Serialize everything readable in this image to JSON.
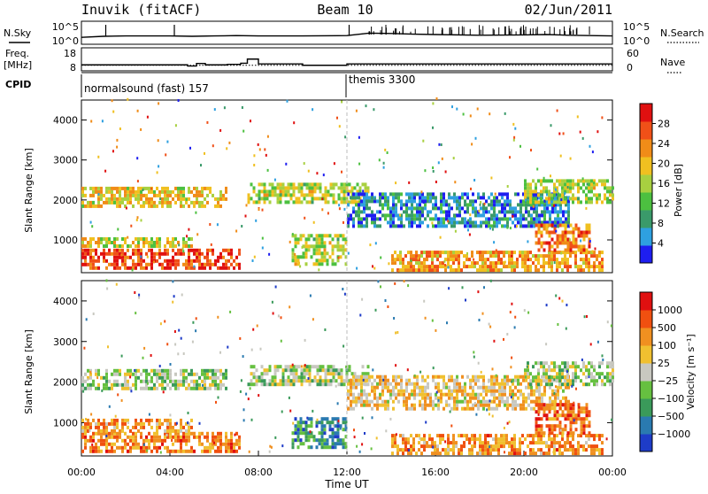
{
  "header": {
    "station": "Inuvik (fitACF)",
    "beam": "Beam 10",
    "date": "02/Jun/2011"
  },
  "left_labels": {
    "nsky": "N.Sky",
    "freq_line1": "Freq.",
    "freq_line2": "[MHz]",
    "cpid": "CPID"
  },
  "right_labels": {
    "nsearch": "N.Search",
    "nave": "Nave"
  },
  "cpid": {
    "mode1": "normalsound (fast) 157",
    "mode2": "themis 3300"
  },
  "colors": {
    "power_scale": [
      "#1e1ef0",
      "#2ea0e0",
      "#3a9a6a",
      "#4cc040",
      "#a8d040",
      "#f0c020",
      "#f08c18",
      "#f05018",
      "#e01010"
    ],
    "velocity_scale": [
      "#1e3cc8",
      "#2a7ab0",
      "#3a9a5a",
      "#66c040",
      "#c8c8c0",
      "#f0c030",
      "#f09020",
      "#f05010",
      "#e01010"
    ]
  },
  "chart_data": [
    {
      "type": "line",
      "panel": "noise",
      "x": [
        0,
        1,
        2,
        4,
        5,
        6,
        7,
        8,
        10,
        12,
        13,
        14,
        15,
        16,
        18,
        20,
        21,
        22,
        23,
        24
      ],
      "series": [
        {
          "name": "N.Sky",
          "values": [
            1.2,
            1.5,
            1.6,
            1.6,
            1.5,
            1.6,
            1.7,
            1.6,
            1.6,
            1.7,
            2.4,
            2.3,
            2.1,
            2.0,
            1.8,
            1.9,
            2.0,
            1.8,
            1.7,
            1.6
          ]
        }
      ],
      "yticks_left": [
        "10^5",
        "10^0"
      ],
      "yticks_right": [
        "10^5",
        "10^0"
      ]
    },
    {
      "type": "line",
      "panel": "frequency",
      "x": [
        0,
        4,
        4.8,
        5.2,
        5.6,
        6.6,
        7.2,
        7.5,
        8,
        10,
        12,
        24
      ],
      "series": [
        {
          "name": "Freq.",
          "values": [
            10.6,
            10.6,
            10.1,
            11.2,
            10.6,
            10.8,
            11.3,
            13.1,
            11.0,
            10.4,
            11.0,
            11.0
          ]
        }
      ],
      "yticks_left": [
        "18",
        "8"
      ],
      "yticks_right": [
        "60",
        "0"
      ]
    },
    {
      "type": "heatmap",
      "panel": "power",
      "x_range": [
        0,
        24
      ],
      "ylim": [
        180,
        4500
      ],
      "ylabel": "Slant Range [km]",
      "yticks": [
        "1000",
        "2000",
        "3000",
        "4000"
      ],
      "colorbar": {
        "label": "Power [dB]",
        "ticks": [
          "28",
          "24",
          "20",
          "16",
          "12",
          "8",
          "4"
        ]
      },
      "regions": [
        {
          "t0": 0,
          "t1": 7.2,
          "r0": 250,
          "r1": 700,
          "level": 0.85
        },
        {
          "t0": 0,
          "t1": 5,
          "r0": 800,
          "r1": 1050,
          "level": 0.55
        },
        {
          "t0": 0,
          "t1": 6.5,
          "r0": 1800,
          "r1": 2300,
          "level": 0.6
        },
        {
          "t0": 7.5,
          "t1": 13,
          "r0": 1900,
          "r1": 2400,
          "level": 0.5
        },
        {
          "t0": 9.5,
          "t1": 12,
          "r0": 350,
          "r1": 1100,
          "level": 0.5
        },
        {
          "t0": 14,
          "t1": 23.5,
          "r0": 200,
          "r1": 650,
          "level": 0.7
        },
        {
          "t0": 12,
          "t1": 22,
          "r0": 1300,
          "r1": 2100,
          "level": 0.2
        },
        {
          "t0": 20.5,
          "t1": 23,
          "r0": 700,
          "r1": 1400,
          "level": 0.75
        },
        {
          "t0": 20,
          "t1": 24,
          "r0": 1900,
          "r1": 2500,
          "level": 0.5
        }
      ]
    },
    {
      "type": "heatmap",
      "panel": "velocity",
      "x_range": [
        0,
        24
      ],
      "ylim": [
        180,
        4500
      ],
      "ylabel": "Slant Range [km]",
      "xlabel": "Time UT",
      "xticks": [
        "00:00",
        "04:00",
        "08:00",
        "12:00",
        "16:00",
        "20:00",
        "00:00"
      ],
      "yticks": [
        "1000",
        "2000",
        "3000",
        "4000"
      ],
      "colorbar": {
        "label": "Velocity [m s⁻¹]",
        "ticks": [
          "1000",
          "500",
          "100",
          "25",
          "−25",
          "−100",
          "−500",
          "−1000"
        ]
      },
      "regions": [
        {
          "t0": 0,
          "t1": 7.2,
          "r0": 250,
          "r1": 700,
          "level": 0.75
        },
        {
          "t0": 0,
          "t1": 5,
          "r0": 750,
          "r1": 1050,
          "level": 0.7
        },
        {
          "t0": 0,
          "t1": 6.5,
          "r0": 1800,
          "r1": 2300,
          "level": 0.45
        },
        {
          "t0": 7.5,
          "t1": 13,
          "r0": 1900,
          "r1": 2400,
          "level": 0.45
        },
        {
          "t0": 9.5,
          "t1": 12,
          "r0": 350,
          "r1": 1100,
          "level": 0.25
        },
        {
          "t0": 14,
          "t1": 23.5,
          "r0": 200,
          "r1": 650,
          "level": 0.72
        },
        {
          "t0": 12,
          "t1": 22,
          "r0": 1300,
          "r1": 2100,
          "level": 0.6
        },
        {
          "t0": 20.5,
          "t1": 23,
          "r0": 700,
          "r1": 1400,
          "level": 0.8
        },
        {
          "t0": 20,
          "t1": 24,
          "r0": 1900,
          "r1": 2500,
          "level": 0.45
        }
      ]
    }
  ]
}
